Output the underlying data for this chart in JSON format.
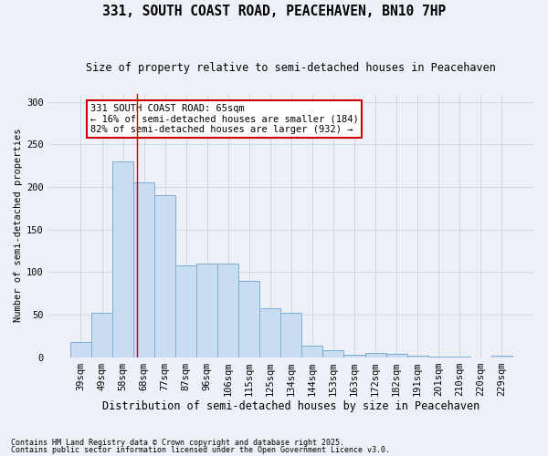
{
  "title1": "331, SOUTH COAST ROAD, PEACEHAVEN, BN10 7HP",
  "title2": "Size of property relative to semi-detached houses in Peacehaven",
  "xlabel": "Distribution of semi-detached houses by size in Peacehaven",
  "ylabel": "Number of semi-detached properties",
  "categories": [
    "39sqm",
    "49sqm",
    "58sqm",
    "68sqm",
    "77sqm",
    "87sqm",
    "96sqm",
    "106sqm",
    "115sqm",
    "125sqm",
    "134sqm",
    "144sqm",
    "153sqm",
    "163sqm",
    "172sqm",
    "182sqm",
    "191sqm",
    "201sqm",
    "210sqm",
    "220sqm",
    "229sqm"
  ],
  "values": [
    18,
    52,
    230,
    205,
    190,
    108,
    110,
    110,
    90,
    57,
    52,
    13,
    8,
    3,
    5,
    4,
    2,
    1,
    1,
    0,
    2
  ],
  "bar_color": "#c9ddf0",
  "bar_edge_color": "#7badd4",
  "grid_color": "#c8d4e4",
  "background_color": "#edf1f7",
  "vline_x": 2.65,
  "vline_color": "#cc0000",
  "annotation_text": "331 SOUTH COAST ROAD: 65sqm\n← 16% of semi-detached houses are smaller (184)\n82% of semi-detached houses are larger (932) →",
  "annotation_box_facecolor": "#ffffff",
  "annotation_box_edgecolor": "#cc0000",
  "footnote1": "Contains HM Land Registry data © Crown copyright and database right 2025.",
  "footnote2": "Contains public sector information licensed under the Open Government Licence v3.0.",
  "ylim": [
    0,
    310
  ],
  "yticks": [
    0,
    50,
    100,
    150,
    200,
    250,
    300
  ],
  "title1_fontsize": 10.5,
  "title2_fontsize": 8.5,
  "xlabel_fontsize": 8.5,
  "ylabel_fontsize": 7.5,
  "tick_fontsize": 7.5,
  "annot_fontsize": 7.5,
  "footnote_fontsize": 6.0
}
